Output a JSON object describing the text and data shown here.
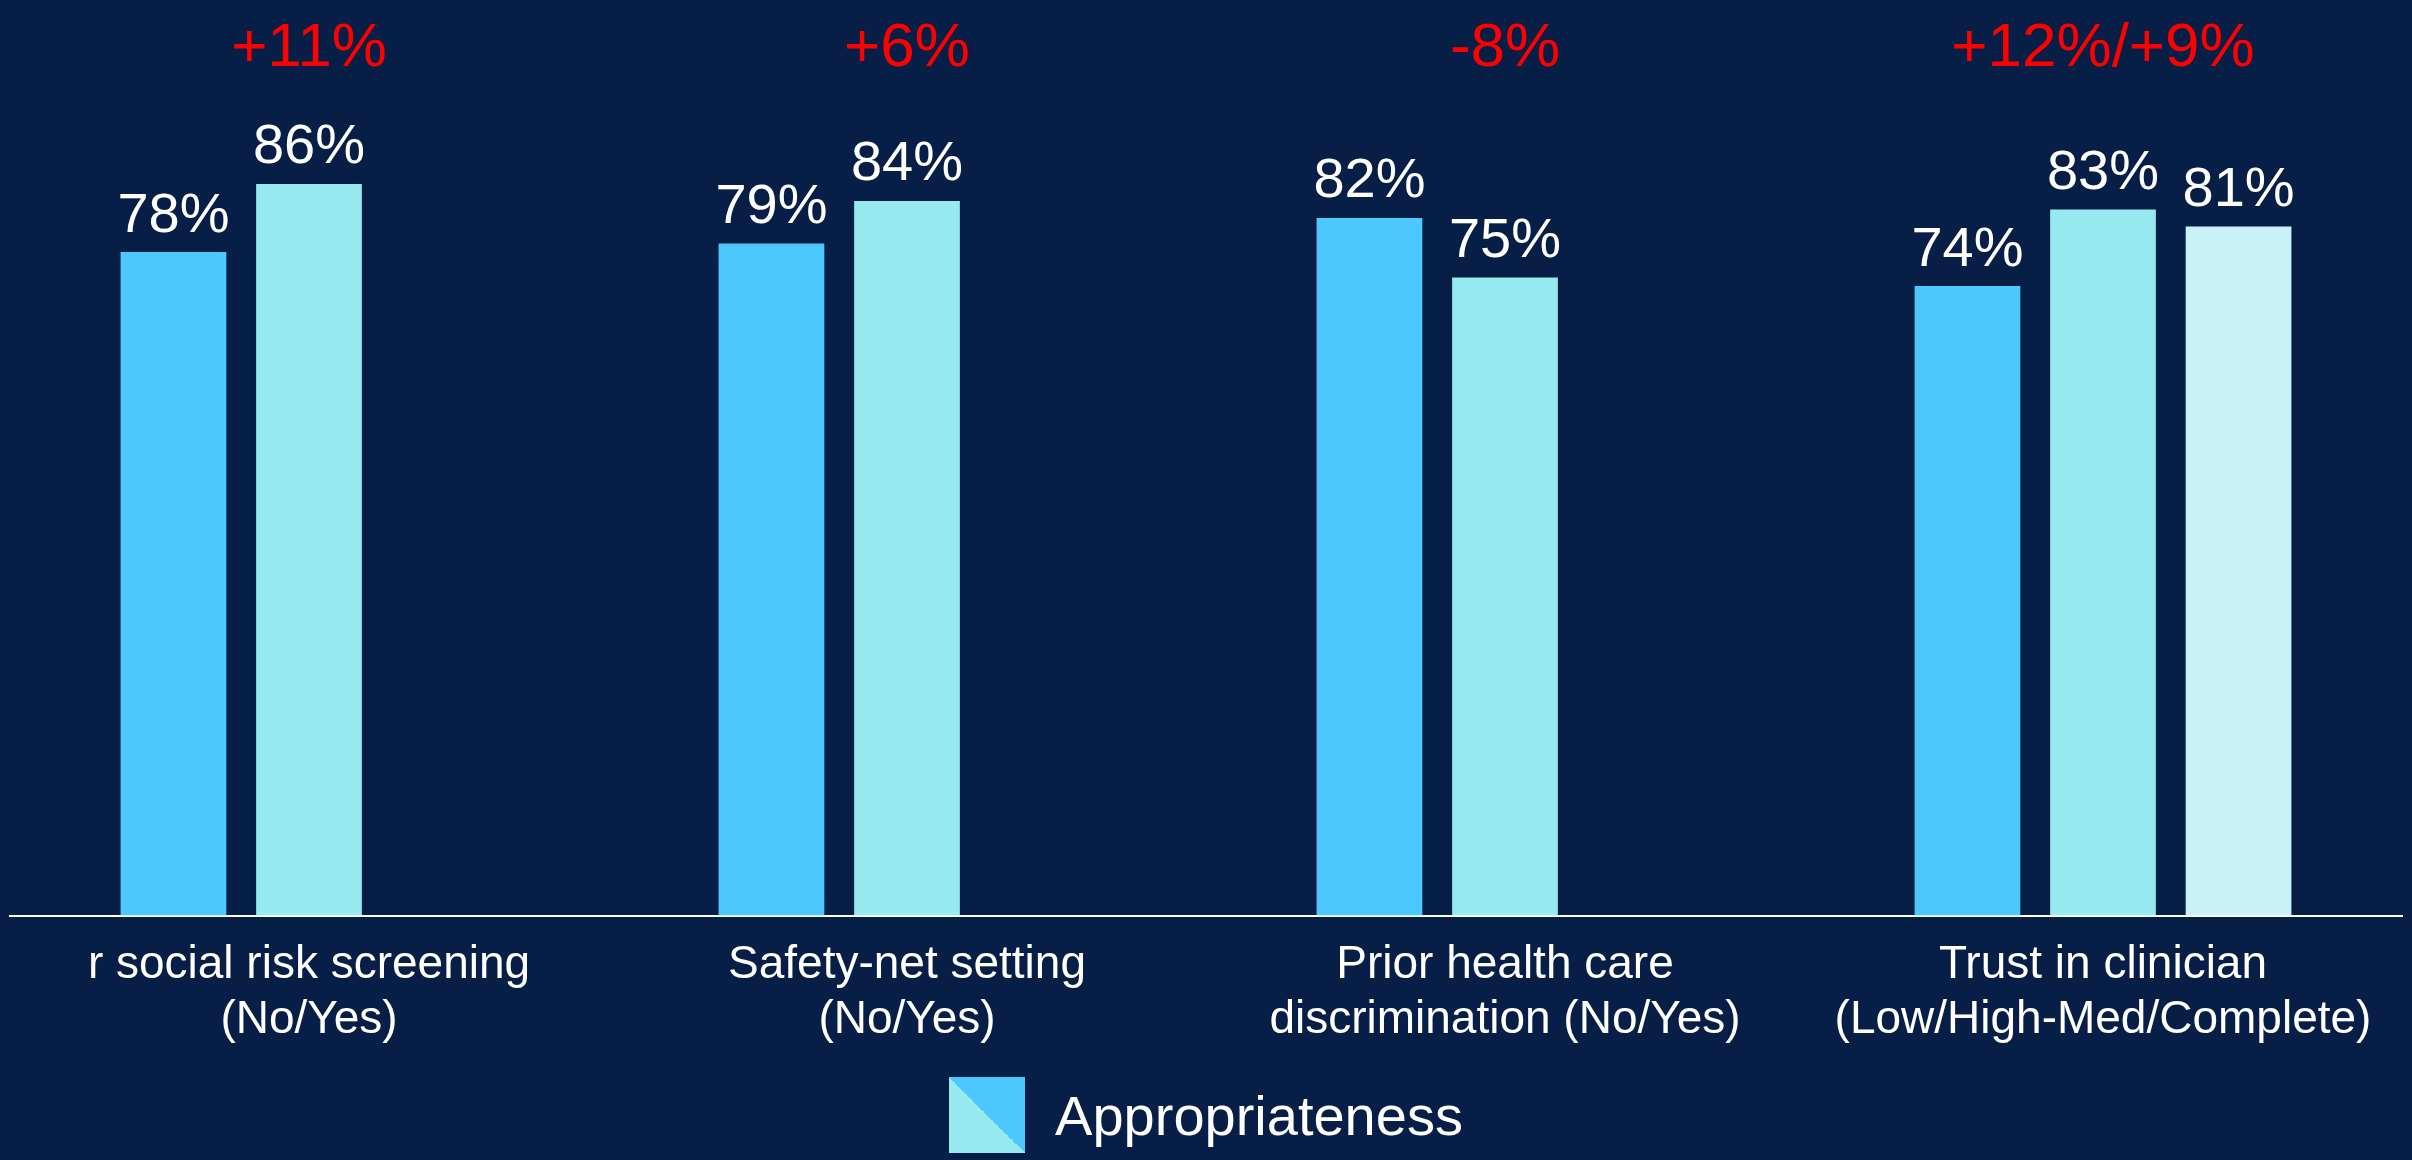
{
  "chart_data": {
    "type": "bar",
    "categories": [
      "r social risk screening\n(No/Yes)",
      "Safety-net setting\n(No/Yes)",
      "Prior health care\ndiscrimination (No/Yes)",
      "Trust in clinician\n(Low/High-Med/Complete)"
    ],
    "series": [
      {
        "color": "#4dc8ff",
        "values": [
          78,
          79,
          82,
          74
        ],
        "value_labels": [
          "78%",
          "79%",
          "82%",
          "74%"
        ]
      },
      {
        "color": "#96eaf0",
        "values": [
          86,
          84,
          75,
          83
        ],
        "value_labels": [
          "86%",
          "84%",
          "75%",
          "83%"
        ]
      },
      {
        "color": "#c8f2f5",
        "values": [
          null,
          null,
          null,
          81
        ],
        "value_labels": [
          null,
          null,
          null,
          "81%"
        ]
      }
    ],
    "tick_labels": "x",
    "grid": false,
    "legend_title": "Appropriateness",
    "annotations": [
      "+11%",
      "+6%",
      "-8%",
      "+12%/+9%"
    ]
  }
}
